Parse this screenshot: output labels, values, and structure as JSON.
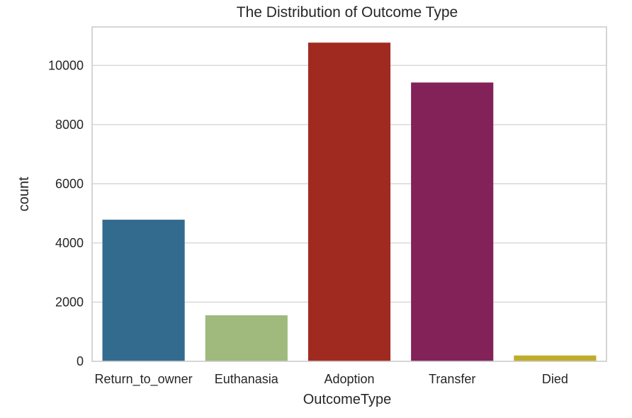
{
  "chart_data": {
    "type": "bar",
    "title": "The Distribution of Outcome Type",
    "xlabel": "OutcomeType",
    "ylabel": "count",
    "categories": [
      "Return_to_owner",
      "Euthanasia",
      "Adoption",
      "Transfer",
      "Died"
    ],
    "values": [
      4786,
      1555,
      10769,
      9422,
      197
    ],
    "colors": [
      "#336b8f",
      "#9fba7c",
      "#a12a20",
      "#822258",
      "#bfac2c"
    ],
    "ylim": [
      0,
      11300
    ],
    "yticks": [
      0,
      2000,
      4000,
      6000,
      8000,
      10000
    ],
    "grid": true,
    "legend": "none"
  }
}
